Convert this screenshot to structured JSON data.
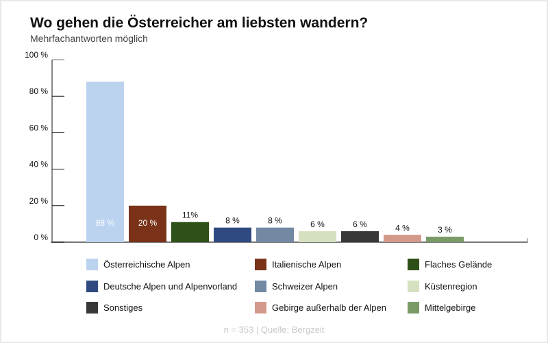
{
  "chart_data": {
    "type": "bar",
    "title": "Wo gehen die Österreicher am liebsten wandern?",
    "subtitle": "Mehrfachantworten möglich",
    "categories": [
      "Österreichische Alpen",
      "Italienische Alpen",
      "Flaches Gelände",
      "Deutsche Alpen und Alpenvorland",
      "Schweizer Alpen",
      "Küstenregion",
      "Sonstiges",
      "Gebirge außerhalb der Alpen",
      "Mittelgebirge"
    ],
    "values": [
      88,
      20,
      11,
      8,
      8,
      6,
      6,
      4,
      3
    ],
    "data_labels": [
      "88 %",
      "20 %",
      "11%",
      "8 %",
      "8 %",
      "6 %",
      "6 %",
      "4 %",
      "3 %"
    ],
    "colors": [
      "#bcd3ef",
      "#7a3219",
      "#2e5019",
      "#2e4a80",
      "#7288a3",
      "#d5e0c0",
      "#383838",
      "#d39a8b",
      "#7a9a68"
    ],
    "label_colors": [
      "#ffffff",
      "#ffffff",
      "#111111",
      "#111111",
      "#111111",
      "#111111",
      "#111111",
      "#111111",
      "#111111"
    ],
    "ylim": [
      0,
      100
    ],
    "yticks": [
      "0 %",
      "20 %",
      "40 %",
      "60 %",
      "80 %",
      "100 %"
    ],
    "ytick_values": [
      0,
      20,
      40,
      60,
      80,
      100
    ],
    "legend_position": "bottom",
    "grid": false,
    "source": "n = 353 | Quelle: Bergzeit"
  }
}
